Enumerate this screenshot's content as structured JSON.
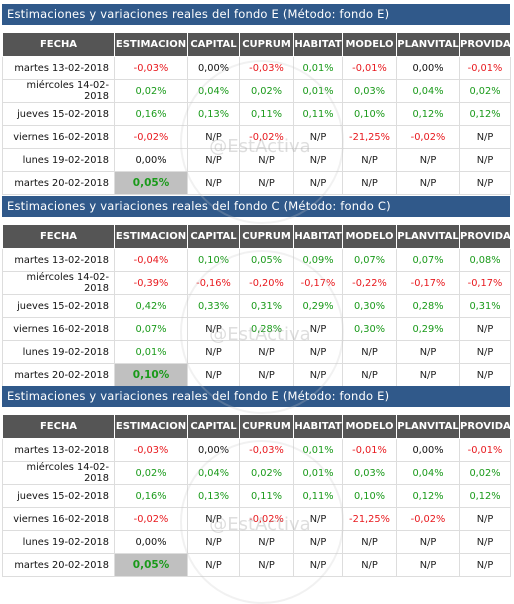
{
  "watermark": "@EstActiva",
  "columns": [
    "FECHA",
    "ESTIMACION",
    "CAPITAL",
    "CUPRUM",
    "HABITAT",
    "MODELO",
    "PLANVITAL",
    "PROVIDA"
  ],
  "panels": [
    {
      "title": "Estimaciones y variaciones reales del fondo E (Método: fondo E)",
      "rows": [
        [
          "martes 13-02-2018",
          "-0,03%",
          "0,00%",
          "-0,03%",
          "0,01%",
          "-0,01%",
          "0,00%",
          "-0,01%"
        ],
        [
          "miércoles 14-02-2018",
          "0,02%",
          "0,04%",
          "0,02%",
          "0,01%",
          "0,03%",
          "0,04%",
          "0,02%"
        ],
        [
          "jueves 15-02-2018",
          "0,16%",
          "0,13%",
          "0,11%",
          "0,11%",
          "0,10%",
          "0,12%",
          "0,12%"
        ],
        [
          "viernes 16-02-2018",
          "-0,02%",
          "N/P",
          "-0,02%",
          "N/P",
          "-21,25%",
          "-0,02%",
          "N/P"
        ],
        [
          "lunes 19-02-2018",
          "0,00%",
          "N/P",
          "N/P",
          "N/P",
          "N/P",
          "N/P",
          "N/P"
        ],
        [
          "martes 20-02-2018",
          "0,05%",
          "N/P",
          "N/P",
          "N/P",
          "N/P",
          "N/P",
          "N/P"
        ]
      ]
    },
    {
      "title": "Estimaciones y variaciones reales del fondo C (Método: fondo C)",
      "rows": [
        [
          "martes 13-02-2018",
          "-0,04%",
          "0,10%",
          "0,05%",
          "0,09%",
          "0,07%",
          "0,07%",
          "0,08%"
        ],
        [
          "miércoles 14-02-2018",
          "-0,39%",
          "-0,16%",
          "-0,20%",
          "-0,17%",
          "-0,22%",
          "-0,17%",
          "-0,17%"
        ],
        [
          "jueves 15-02-2018",
          "0,42%",
          "0,33%",
          "0,31%",
          "0,29%",
          "0,30%",
          "0,28%",
          "0,31%"
        ],
        [
          "viernes 16-02-2018",
          "0,07%",
          "N/P",
          "0,28%",
          "N/P",
          "0,30%",
          "0,29%",
          "N/P"
        ],
        [
          "lunes 19-02-2018",
          "0,01%",
          "N/P",
          "N/P",
          "N/P",
          "N/P",
          "N/P",
          "N/P"
        ],
        [
          "martes 20-02-2018",
          "0,10%",
          "N/P",
          "N/P",
          "N/P",
          "N/P",
          "N/P",
          "N/P"
        ]
      ]
    },
    {
      "title": "Estimaciones y variaciones reales del fondo E (Método: fondo E)",
      "rows": [
        [
          "martes 13-02-2018",
          "-0,03%",
          "0,00%",
          "-0,03%",
          "0,01%",
          "-0,01%",
          "0,00%",
          "-0,01%"
        ],
        [
          "miércoles 14-02-2018",
          "0,02%",
          "0,04%",
          "0,02%",
          "0,01%",
          "0,03%",
          "0,04%",
          "0,02%"
        ],
        [
          "jueves 15-02-2018",
          "0,16%",
          "0,13%",
          "0,11%",
          "0,11%",
          "0,10%",
          "0,12%",
          "0,12%"
        ],
        [
          "viernes 16-02-2018",
          "-0,02%",
          "N/P",
          "-0,02%",
          "N/P",
          "-21,25%",
          "-0,02%",
          "N/P"
        ],
        [
          "lunes 19-02-2018",
          "0,00%",
          "N/P",
          "N/P",
          "N/P",
          "N/P",
          "N/P",
          "N/P"
        ],
        [
          "martes 20-02-2018",
          "0,05%",
          "N/P",
          "N/P",
          "N/P",
          "N/P",
          "N/P",
          "N/P"
        ]
      ]
    }
  ],
  "colors": {
    "title_bar": "#30598a",
    "header": "#555555",
    "negative": "#e8191e",
    "positive": "#1a9a1a",
    "highlight": "#c0c0c0"
  }
}
